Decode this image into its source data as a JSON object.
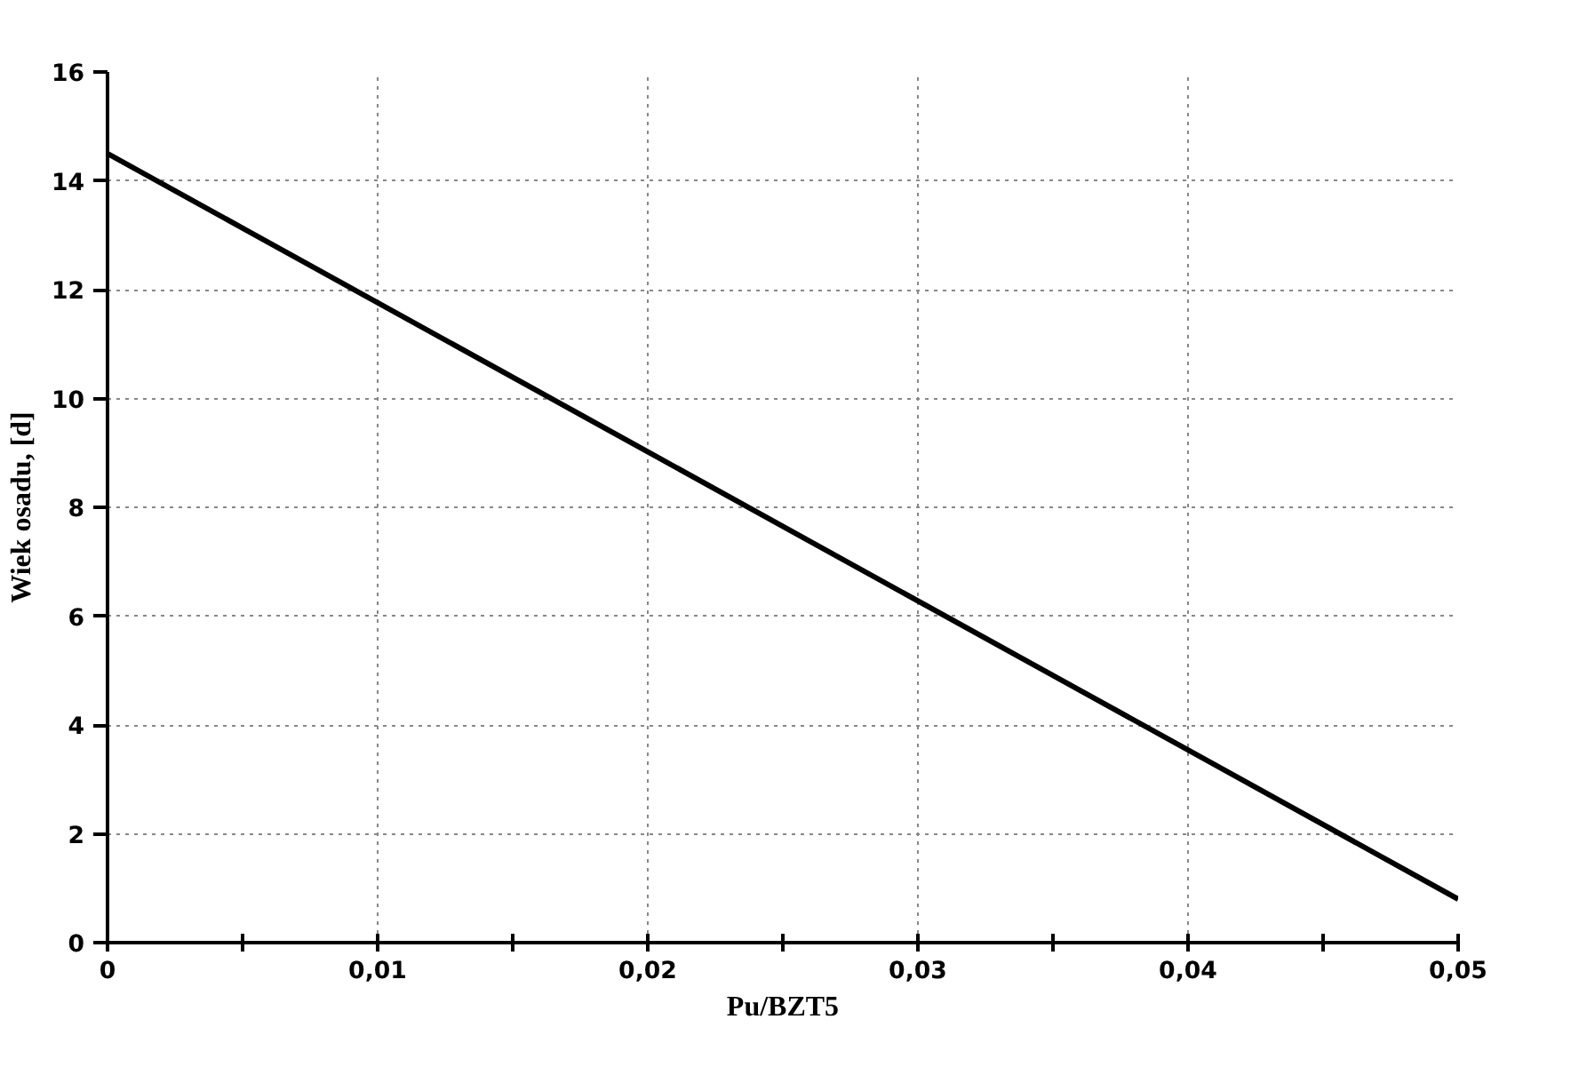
{
  "chart_data": {
    "type": "line",
    "xlabel": "Pu/BZT5",
    "ylabel": "Wiek osadu, [d]",
    "x": [
      0,
      0.05
    ],
    "series": [
      {
        "color": "#000000",
        "values": [
          14.5,
          0.8
        ]
      }
    ],
    "xlim": [
      0,
      0.05
    ],
    "ylim": [
      0,
      16
    ],
    "xticks": [
      {
        "value": 0,
        "label": "0"
      },
      {
        "value": 0.005,
        "label": null
      },
      {
        "value": 0.01,
        "label": "0,01"
      },
      {
        "value": 0.015,
        "label": null
      },
      {
        "value": 0.02,
        "label": "0,02"
      },
      {
        "value": 0.025,
        "label": null
      },
      {
        "value": 0.03,
        "label": "0,03"
      },
      {
        "value": 0.035,
        "label": null
      },
      {
        "value": 0.04,
        "label": "0,04"
      },
      {
        "value": 0.045,
        "label": null
      },
      {
        "value": 0.05,
        "label": "0,05"
      }
    ],
    "yticks": [
      0,
      2,
      4,
      6,
      8,
      10,
      12,
      14,
      16
    ],
    "grid": true,
    "line_style": "solid"
  }
}
